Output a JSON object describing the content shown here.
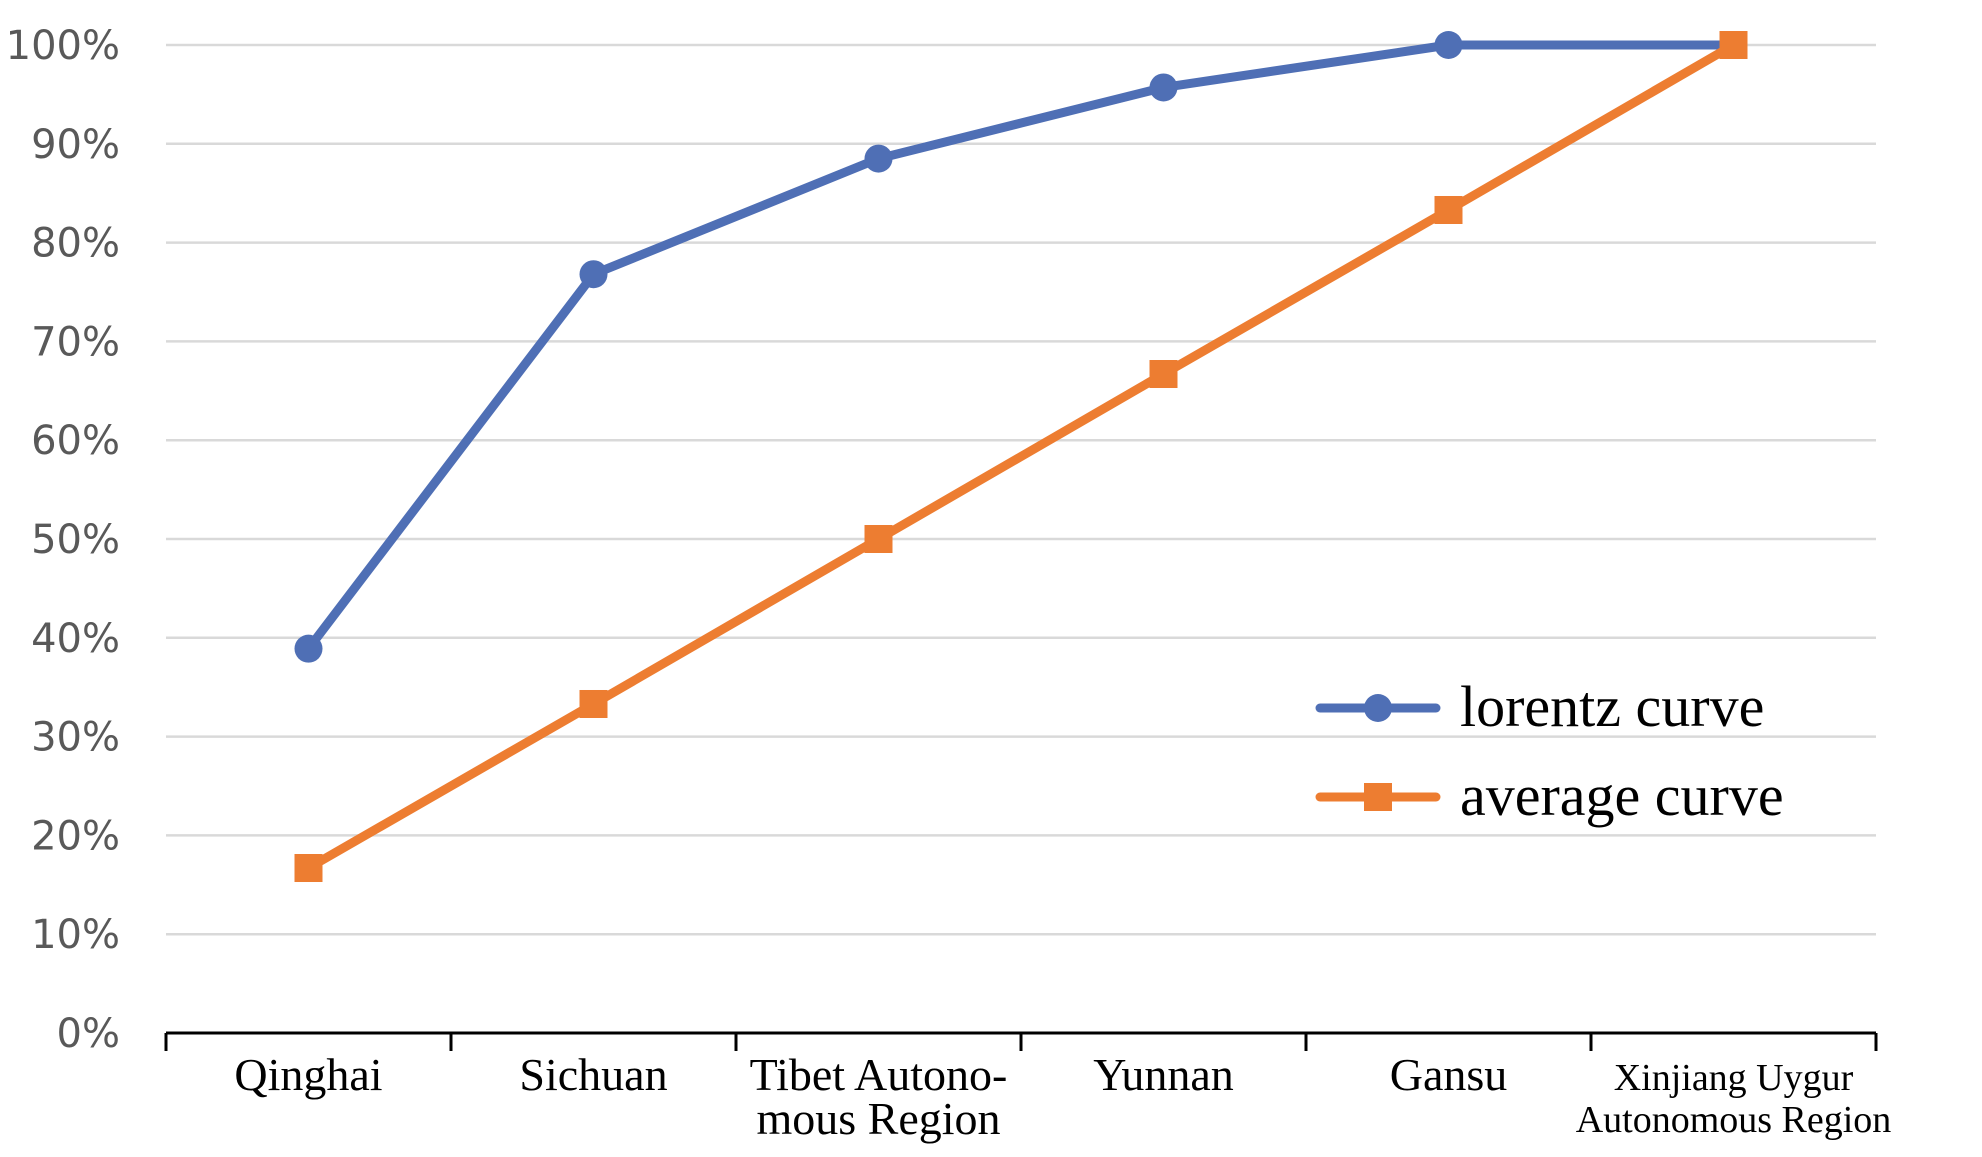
{
  "chart_data": {
    "type": "line",
    "title": "",
    "xlabel": "",
    "ylabel": "",
    "categories": [
      "Qinghai",
      "Sichuan",
      "Tibet Autono-mous Region",
      "Yunnan",
      "Gansu",
      "Xinjiang Uygur Autonomous Region"
    ],
    "category_lines": [
      [
        "Qinghai"
      ],
      [
        "Sichuan"
      ],
      [
        "Tibet Autono-",
        "mous Region"
      ],
      [
        "Yunnan"
      ],
      [
        "Gansu"
      ],
      [
        "Xinjiang Uygur",
        "Autonomous Region"
      ]
    ],
    "ylim": [
      0,
      100
    ],
    "ytick_step": 10,
    "ytick_labels": [
      "0%",
      "10%",
      "20%",
      "30%",
      "40%",
      "50%",
      "60%",
      "70%",
      "80%",
      "90%",
      "100%"
    ],
    "grid": true,
    "legend_position": "right-middle",
    "series": [
      {
        "name": "lorentz curve",
        "marker": "circle",
        "color": "#4f6fb5",
        "values": [
          38.9,
          76.8,
          88.5,
          95.7,
          100,
          100
        ]
      },
      {
        "name": "average curve",
        "marker": "square",
        "color": "#ed7d31",
        "values": [
          16.7,
          33.3,
          50.0,
          66.7,
          83.3,
          100
        ]
      }
    ]
  }
}
